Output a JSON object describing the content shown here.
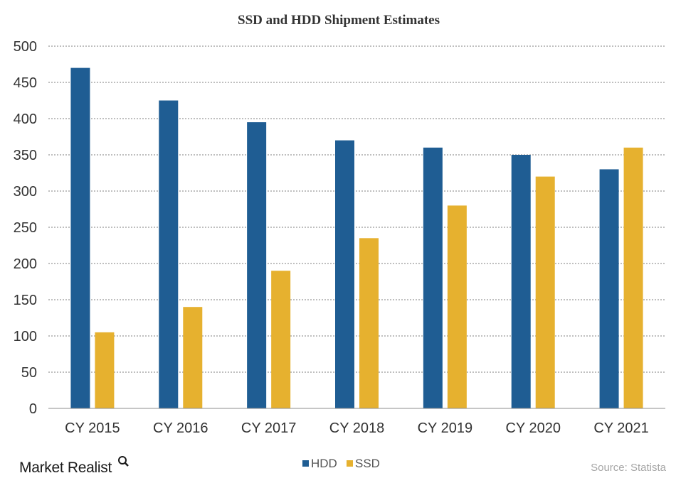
{
  "chart_data": {
    "type": "bar",
    "title": "SSD and HDD Shipment Estimates",
    "categories": [
      "CY 2015",
      "CY 2016",
      "CY 2017",
      "CY 2018",
      "CY 2019",
      "CY 2020",
      "CY 2021"
    ],
    "series": [
      {
        "name": "HDD",
        "color": "#1f5d93",
        "values": [
          470,
          425,
          395,
          370,
          360,
          350,
          330
        ]
      },
      {
        "name": "SSD",
        "color": "#e6b12f",
        "values": [
          105,
          140,
          190,
          235,
          280,
          320,
          360
        ]
      }
    ],
    "ylim": [
      0,
      500
    ],
    "yticks": [
      0,
      50,
      100,
      150,
      200,
      250,
      300,
      350,
      400,
      450,
      500
    ],
    "xlabel": "",
    "ylabel": "",
    "grid": true,
    "legend_position": "bottom-center"
  },
  "footer": {
    "brand": "Market Realist",
    "source": "Source: Statista"
  }
}
